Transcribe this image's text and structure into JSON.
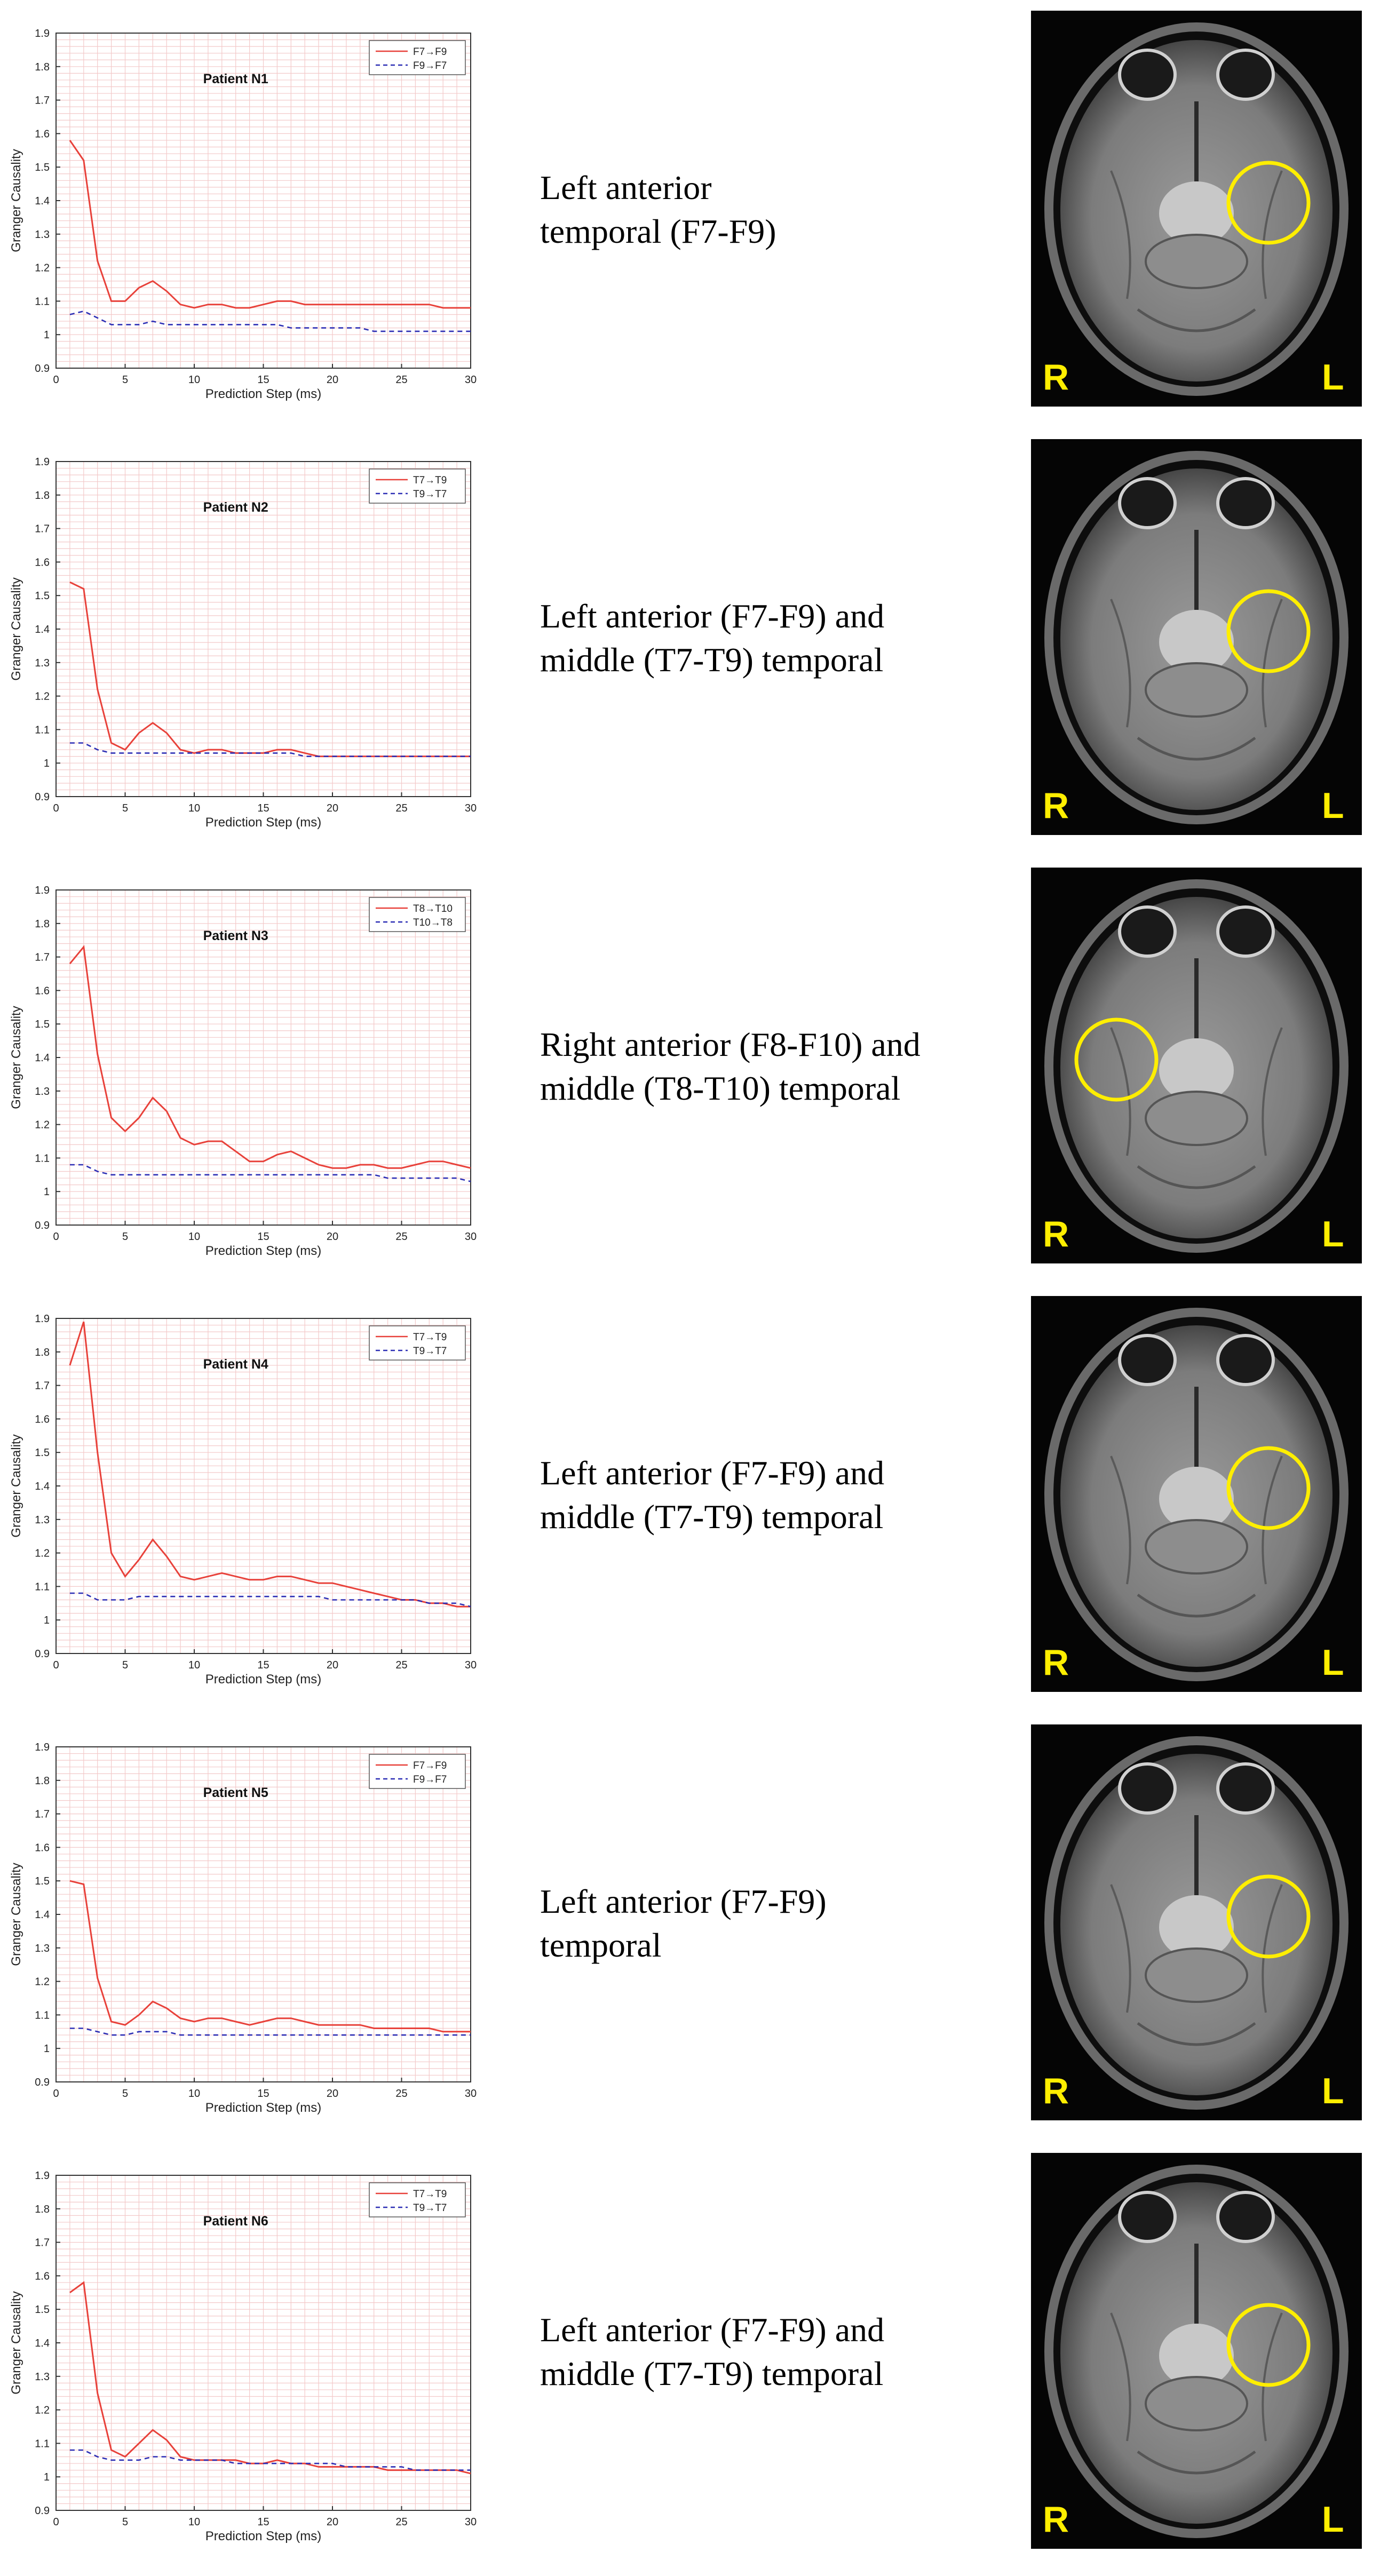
{
  "colors": {
    "series_a": "#e8413a",
    "series_b": "#2d2fb5",
    "grid": "#f3c9c9",
    "roi_circle": "#ffee00"
  },
  "charts": [
    {
      "patient": "Patient N1",
      "description": [
        "Left anterior",
        "temporal (F7-F9)"
      ],
      "mri_labels": {
        "right": "R",
        "left": "L"
      },
      "roi_side": "left"
    },
    {
      "patient": "Patient N2",
      "description": [
        "Left anterior (F7-F9) and",
        "middle (T7-T9) temporal"
      ],
      "mri_labels": {
        "right": "R",
        "left": "L"
      },
      "roi_side": "left"
    },
    {
      "patient": "Patient N3",
      "description": [
        "Right anterior (F8-F10) and",
        "middle (T8-T10) temporal"
      ],
      "mri_labels": {
        "right": "R",
        "left": "L"
      },
      "roi_side": "right"
    },
    {
      "patient": "Patient N4",
      "description": [
        "Left anterior (F7-F9) and",
        "middle (T7-T9) temporal"
      ],
      "mri_labels": {
        "right": "R",
        "left": "L"
      },
      "roi_side": "left"
    },
    {
      "patient": "Patient N5",
      "description": [
        "Left anterior (F7-F9)",
        "temporal"
      ],
      "mri_labels": {
        "right": "R",
        "left": "L"
      },
      "roi_side": "left"
    },
    {
      "patient": "Patient N6",
      "description": [
        "Left anterior (F7-F9) and",
        "middle (T7-T9) temporal"
      ],
      "mri_labels": {
        "right": "R",
        "left": "L"
      },
      "roi_side": "left"
    }
  ],
  "chart_data": [
    {
      "type": "line",
      "title": "Patient N1",
      "xlabel": "Prediction Step (ms)",
      "ylabel": "Granger Causality",
      "xlim": [
        0,
        30
      ],
      "ylim": [
        0.9,
        1.9
      ],
      "xticks": [
        0,
        5,
        10,
        15,
        20,
        25,
        30
      ],
      "yticks": [
        0.9,
        1,
        1.1,
        1.2,
        1.3,
        1.4,
        1.5,
        1.6,
        1.7,
        1.8,
        1.9
      ],
      "grid": true,
      "legend": "top-right",
      "x": [
        1,
        2,
        3,
        4,
        5,
        6,
        7,
        8,
        9,
        10,
        11,
        12,
        13,
        14,
        15,
        16,
        17,
        18,
        19,
        20,
        21,
        22,
        23,
        24,
        25,
        26,
        27,
        28,
        29,
        30
      ],
      "series": [
        {
          "name": "F7→F9",
          "style": "solid",
          "values": [
            1.58,
            1.52,
            1.22,
            1.1,
            1.1,
            1.14,
            1.16,
            1.13,
            1.09,
            1.08,
            1.09,
            1.09,
            1.08,
            1.08,
            1.09,
            1.1,
            1.1,
            1.09,
            1.09,
            1.09,
            1.09,
            1.09,
            1.09,
            1.09,
            1.09,
            1.09,
            1.09,
            1.08,
            1.08,
            1.08
          ]
        },
        {
          "name": "F9→F7",
          "style": "dashed",
          "values": [
            1.06,
            1.07,
            1.05,
            1.03,
            1.03,
            1.03,
            1.04,
            1.03,
            1.03,
            1.03,
            1.03,
            1.03,
            1.03,
            1.03,
            1.03,
            1.03,
            1.02,
            1.02,
            1.02,
            1.02,
            1.02,
            1.02,
            1.01,
            1.01,
            1.01,
            1.01,
            1.01,
            1.01,
            1.01,
            1.01
          ]
        }
      ]
    },
    {
      "type": "line",
      "title": "Patient N2",
      "xlabel": "Prediction Step (ms)",
      "ylabel": "Granger Causality",
      "xlim": [
        0,
        30
      ],
      "ylim": [
        0.9,
        1.9
      ],
      "xticks": [
        0,
        5,
        10,
        15,
        20,
        25,
        30
      ],
      "yticks": [
        0.9,
        1,
        1.1,
        1.2,
        1.3,
        1.4,
        1.5,
        1.6,
        1.7,
        1.8,
        1.9
      ],
      "grid": true,
      "legend": "top-right",
      "x": [
        1,
        2,
        3,
        4,
        5,
        6,
        7,
        8,
        9,
        10,
        11,
        12,
        13,
        14,
        15,
        16,
        17,
        18,
        19,
        20,
        21,
        22,
        23,
        24,
        25,
        26,
        27,
        28,
        29,
        30
      ],
      "series": [
        {
          "name": "T7→T9",
          "style": "solid",
          "values": [
            1.54,
            1.52,
            1.22,
            1.06,
            1.04,
            1.09,
            1.12,
            1.09,
            1.04,
            1.03,
            1.04,
            1.04,
            1.03,
            1.03,
            1.03,
            1.04,
            1.04,
            1.03,
            1.02,
            1.02,
            1.02,
            1.02,
            1.02,
            1.02,
            1.02,
            1.02,
            1.02,
            1.02,
            1.02,
            1.02
          ]
        },
        {
          "name": "T9→T7",
          "style": "dashed",
          "values": [
            1.06,
            1.06,
            1.04,
            1.03,
            1.03,
            1.03,
            1.03,
            1.03,
            1.03,
            1.03,
            1.03,
            1.03,
            1.03,
            1.03,
            1.03,
            1.03,
            1.03,
            1.02,
            1.02,
            1.02,
            1.02,
            1.02,
            1.02,
            1.02,
            1.02,
            1.02,
            1.02,
            1.02,
            1.02,
            1.02
          ]
        }
      ]
    },
    {
      "type": "line",
      "title": "Patient N3",
      "xlabel": "Prediction Step (ms)",
      "ylabel": "Granger Causality",
      "xlim": [
        0,
        30
      ],
      "ylim": [
        0.9,
        1.9
      ],
      "xticks": [
        0,
        5,
        10,
        15,
        20,
        25,
        30
      ],
      "yticks": [
        0.9,
        1,
        1.1,
        1.2,
        1.3,
        1.4,
        1.5,
        1.6,
        1.7,
        1.8,
        1.9
      ],
      "grid": true,
      "legend": "top-right",
      "x": [
        1,
        2,
        3,
        4,
        5,
        6,
        7,
        8,
        9,
        10,
        11,
        12,
        13,
        14,
        15,
        16,
        17,
        18,
        19,
        20,
        21,
        22,
        23,
        24,
        25,
        26,
        27,
        28,
        29,
        30
      ],
      "series": [
        {
          "name": "T8→T10",
          "style": "solid",
          "values": [
            1.68,
            1.73,
            1.41,
            1.22,
            1.18,
            1.22,
            1.28,
            1.24,
            1.16,
            1.14,
            1.15,
            1.15,
            1.12,
            1.09,
            1.09,
            1.11,
            1.12,
            1.1,
            1.08,
            1.07,
            1.07,
            1.08,
            1.08,
            1.07,
            1.07,
            1.08,
            1.09,
            1.09,
            1.08,
            1.07
          ]
        },
        {
          "name": "T10→T8",
          "style": "dashed",
          "values": [
            1.08,
            1.08,
            1.06,
            1.05,
            1.05,
            1.05,
            1.05,
            1.05,
            1.05,
            1.05,
            1.05,
            1.05,
            1.05,
            1.05,
            1.05,
            1.05,
            1.05,
            1.05,
            1.05,
            1.05,
            1.05,
            1.05,
            1.05,
            1.04,
            1.04,
            1.04,
            1.04,
            1.04,
            1.04,
            1.03
          ]
        }
      ]
    },
    {
      "type": "line",
      "title": "Patient N4",
      "xlabel": "Prediction Step (ms)",
      "ylabel": "Granger Causality",
      "xlim": [
        0,
        30
      ],
      "ylim": [
        0.9,
        1.9
      ],
      "xticks": [
        0,
        5,
        10,
        15,
        20,
        25,
        30
      ],
      "yticks": [
        0.9,
        1,
        1.1,
        1.2,
        1.3,
        1.4,
        1.5,
        1.6,
        1.7,
        1.8,
        1.9
      ],
      "grid": true,
      "legend": "top-right",
      "x": [
        1,
        2,
        3,
        4,
        5,
        6,
        7,
        8,
        9,
        10,
        11,
        12,
        13,
        14,
        15,
        16,
        17,
        18,
        19,
        20,
        21,
        22,
        23,
        24,
        25,
        26,
        27,
        28,
        29,
        30
      ],
      "series": [
        {
          "name": "T7→T9",
          "style": "solid",
          "values": [
            1.76,
            1.89,
            1.5,
            1.2,
            1.13,
            1.18,
            1.24,
            1.19,
            1.13,
            1.12,
            1.13,
            1.14,
            1.13,
            1.12,
            1.12,
            1.13,
            1.13,
            1.12,
            1.11,
            1.11,
            1.1,
            1.09,
            1.08,
            1.07,
            1.06,
            1.06,
            1.05,
            1.05,
            1.04,
            1.04
          ]
        },
        {
          "name": "T9→T7",
          "style": "dashed",
          "values": [
            1.08,
            1.08,
            1.06,
            1.06,
            1.06,
            1.07,
            1.07,
            1.07,
            1.07,
            1.07,
            1.07,
            1.07,
            1.07,
            1.07,
            1.07,
            1.07,
            1.07,
            1.07,
            1.07,
            1.06,
            1.06,
            1.06,
            1.06,
            1.06,
            1.06,
            1.06,
            1.05,
            1.05,
            1.05,
            1.04
          ]
        }
      ]
    },
    {
      "type": "line",
      "title": "Patient N5",
      "xlabel": "Prediction Step (ms)",
      "ylabel": "Granger Causality",
      "xlim": [
        0,
        30
      ],
      "ylim": [
        0.9,
        1.9
      ],
      "xticks": [
        0,
        5,
        10,
        15,
        20,
        25,
        30
      ],
      "yticks": [
        0.9,
        1,
        1.1,
        1.2,
        1.3,
        1.4,
        1.5,
        1.6,
        1.7,
        1.8,
        1.9
      ],
      "grid": true,
      "legend": "top-right",
      "x": [
        1,
        2,
        3,
        4,
        5,
        6,
        7,
        8,
        9,
        10,
        11,
        12,
        13,
        14,
        15,
        16,
        17,
        18,
        19,
        20,
        21,
        22,
        23,
        24,
        25,
        26,
        27,
        28,
        29,
        30
      ],
      "series": [
        {
          "name": "F7→F9",
          "style": "solid",
          "values": [
            1.5,
            1.49,
            1.21,
            1.08,
            1.07,
            1.1,
            1.14,
            1.12,
            1.09,
            1.08,
            1.09,
            1.09,
            1.08,
            1.07,
            1.08,
            1.09,
            1.09,
            1.08,
            1.07,
            1.07,
            1.07,
            1.07,
            1.06,
            1.06,
            1.06,
            1.06,
            1.06,
            1.05,
            1.05,
            1.05
          ]
        },
        {
          "name": "F9→F7",
          "style": "dashed",
          "values": [
            1.06,
            1.06,
            1.05,
            1.04,
            1.04,
            1.05,
            1.05,
            1.05,
            1.04,
            1.04,
            1.04,
            1.04,
            1.04,
            1.04,
            1.04,
            1.04,
            1.04,
            1.04,
            1.04,
            1.04,
            1.04,
            1.04,
            1.04,
            1.04,
            1.04,
            1.04,
            1.04,
            1.04,
            1.04,
            1.04
          ]
        }
      ]
    },
    {
      "type": "line",
      "title": "Patient N6",
      "xlabel": "Prediction Step (ms)",
      "ylabel": "Granger Causality",
      "xlim": [
        0,
        30
      ],
      "ylim": [
        0.9,
        1.9
      ],
      "xticks": [
        0,
        5,
        10,
        15,
        20,
        25,
        30
      ],
      "yticks": [
        0.9,
        1,
        1.1,
        1.2,
        1.3,
        1.4,
        1.5,
        1.6,
        1.7,
        1.8,
        1.9
      ],
      "grid": true,
      "legend": "top-right",
      "x": [
        1,
        2,
        3,
        4,
        5,
        6,
        7,
        8,
        9,
        10,
        11,
        12,
        13,
        14,
        15,
        16,
        17,
        18,
        19,
        20,
        21,
        22,
        23,
        24,
        25,
        26,
        27,
        28,
        29,
        30
      ],
      "series": [
        {
          "name": "T7→T9",
          "style": "solid",
          "values": [
            1.55,
            1.58,
            1.25,
            1.08,
            1.06,
            1.1,
            1.14,
            1.11,
            1.06,
            1.05,
            1.05,
            1.05,
            1.05,
            1.04,
            1.04,
            1.05,
            1.04,
            1.04,
            1.03,
            1.03,
            1.03,
            1.03,
            1.03,
            1.02,
            1.02,
            1.02,
            1.02,
            1.02,
            1.02,
            1.01
          ]
        },
        {
          "name": "T9→T7",
          "style": "dashed",
          "values": [
            1.08,
            1.08,
            1.06,
            1.05,
            1.05,
            1.05,
            1.06,
            1.06,
            1.05,
            1.05,
            1.05,
            1.05,
            1.04,
            1.04,
            1.04,
            1.04,
            1.04,
            1.04,
            1.04,
            1.04,
            1.03,
            1.03,
            1.03,
            1.03,
            1.03,
            1.02,
            1.02,
            1.02,
            1.02,
            1.02
          ]
        }
      ]
    }
  ]
}
